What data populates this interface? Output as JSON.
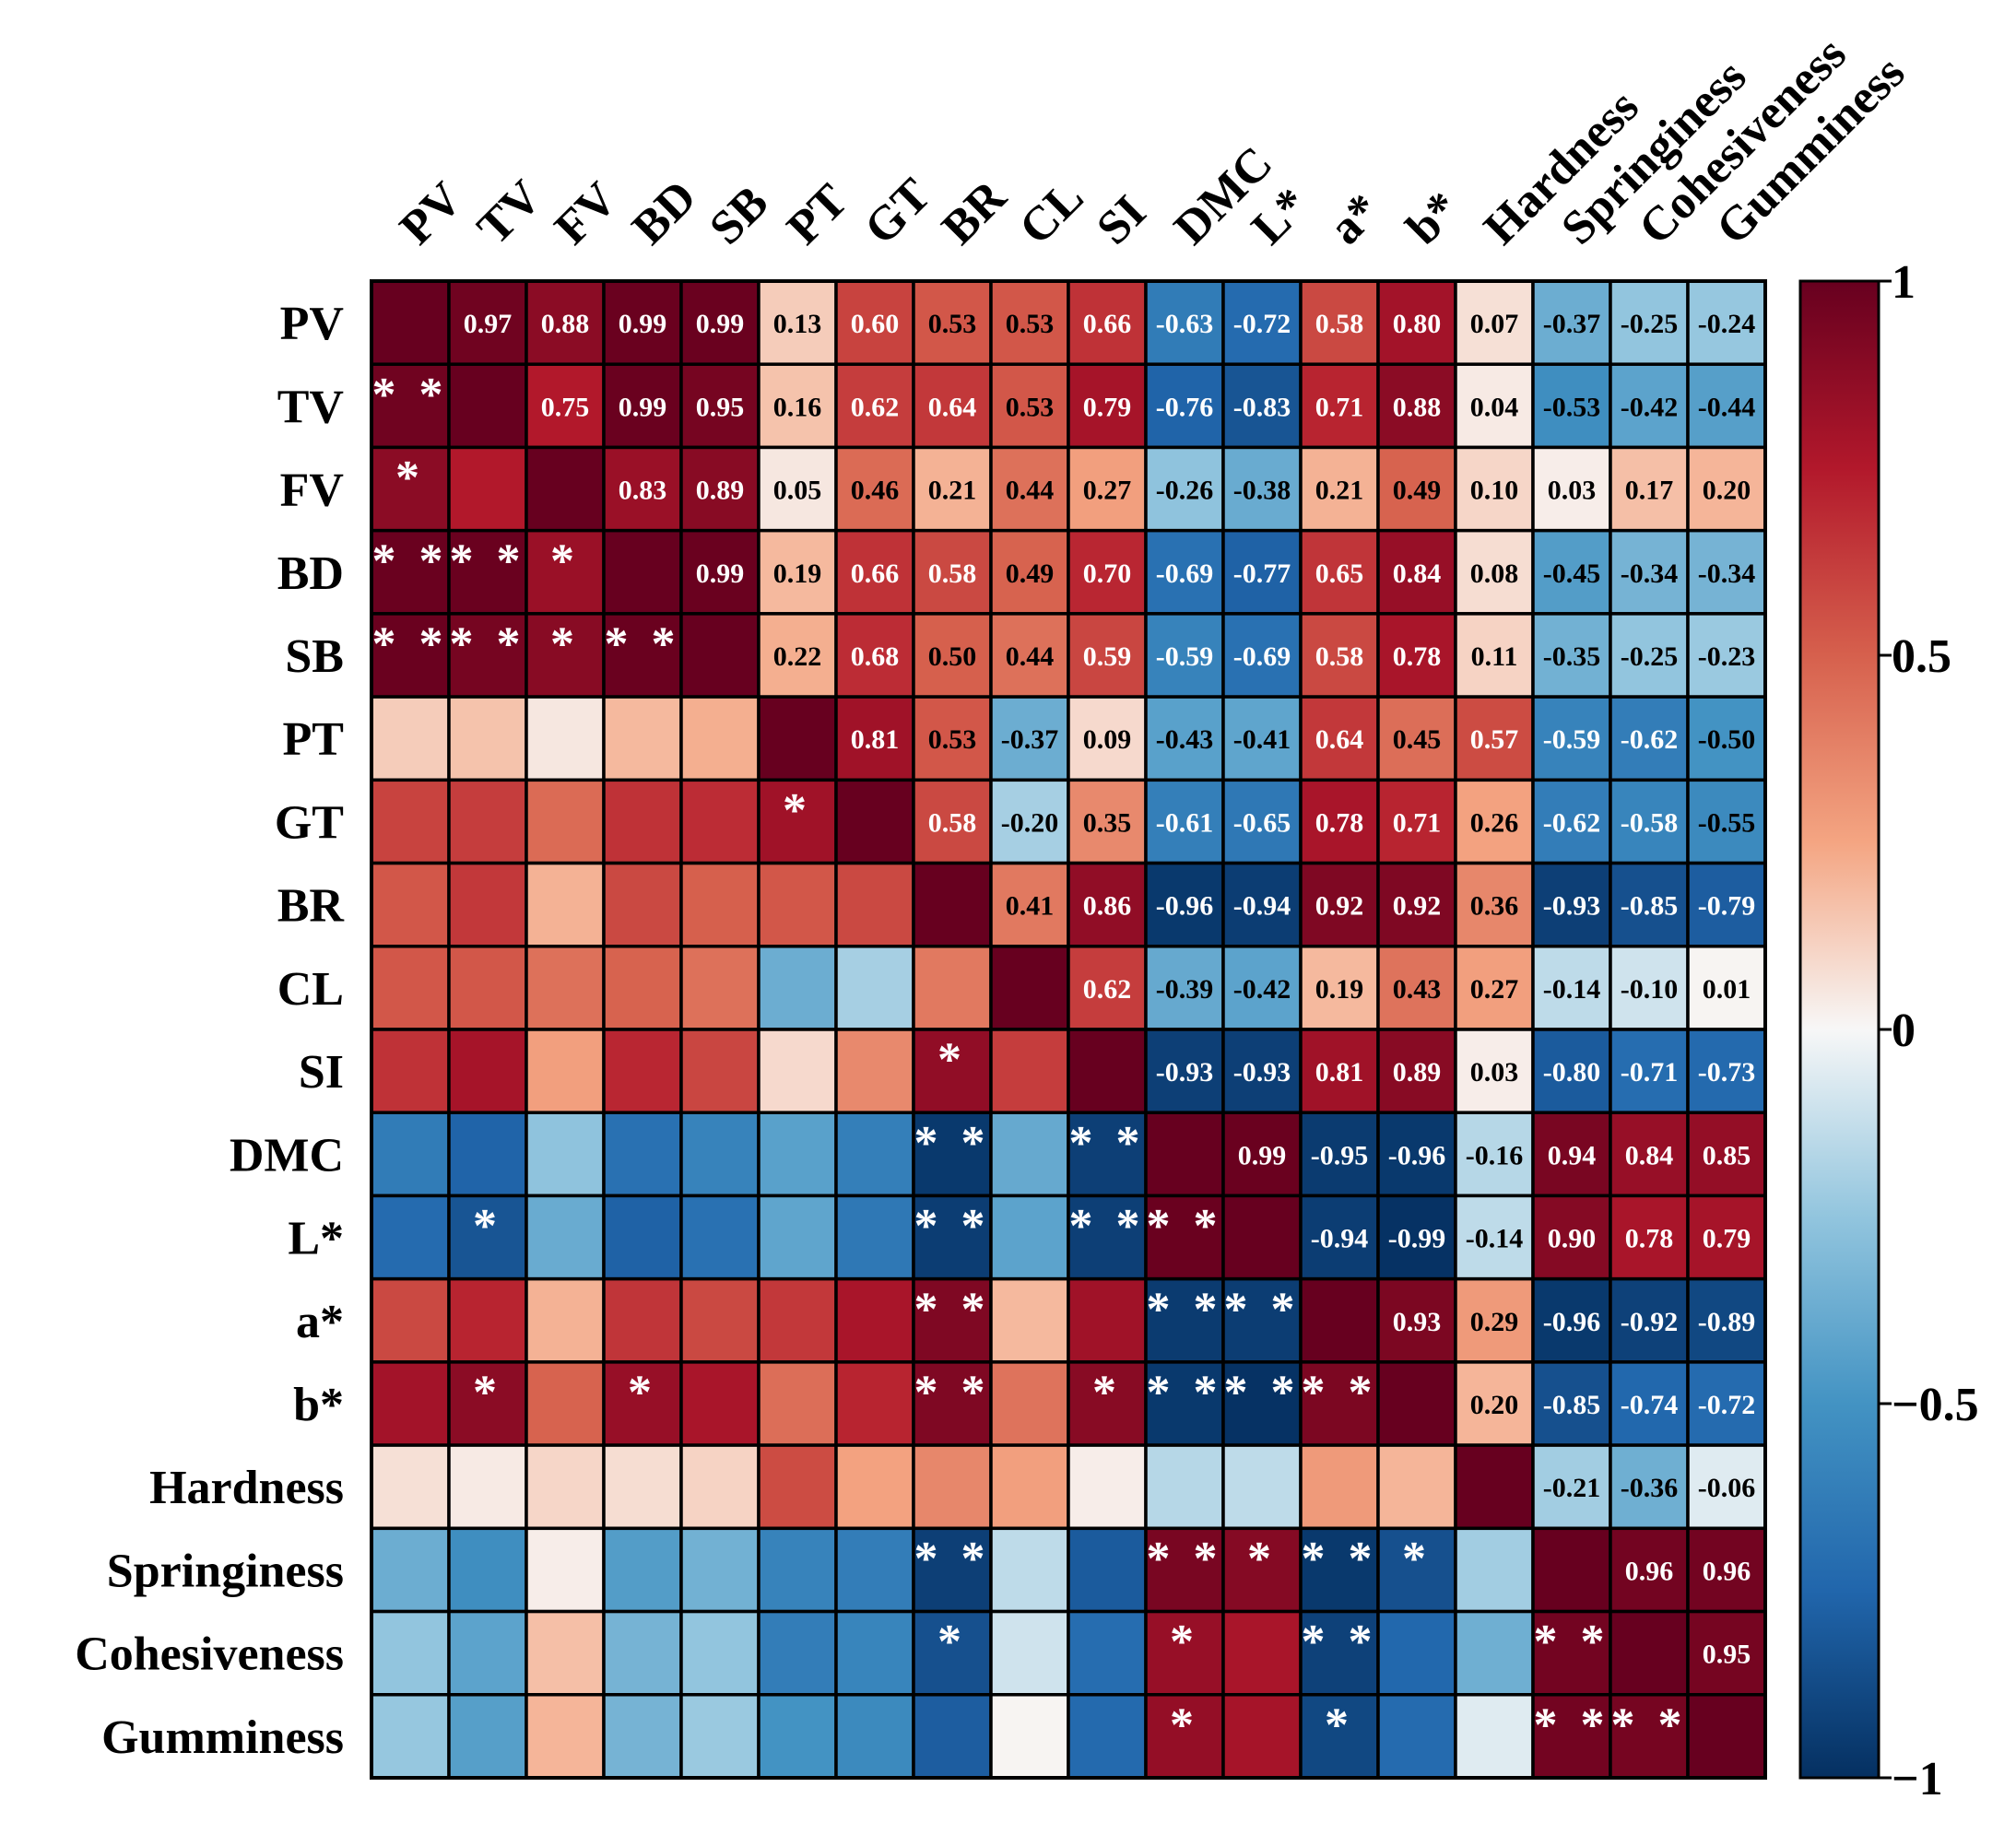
{
  "chart_data": {
    "type": "heatmap",
    "title": "",
    "variables": [
      "PV",
      "TV",
      "FV",
      "BD",
      "SB",
      "PT",
      "GT",
      "BR",
      "CL",
      "SI",
      "DMC",
      "L*",
      "a*",
      "b*",
      "Hardness",
      "Springiness",
      "Cohesiveness",
      "Gumminess"
    ],
    "upper_triangle": "correlation coefficient labels",
    "lower_triangle": "significance markers (* / **)",
    "matrix": [
      [
        1,
        0.97,
        0.88,
        0.99,
        0.99,
        0.13,
        0.6,
        0.53,
        0.53,
        0.66,
        -0.63,
        -0.72,
        0.58,
        0.8,
        0.07,
        -0.37,
        -0.25,
        -0.24
      ],
      [
        0.97,
        1,
        0.75,
        0.99,
        0.95,
        0.16,
        0.62,
        0.64,
        0.53,
        0.79,
        -0.76,
        -0.83,
        0.71,
        0.88,
        0.04,
        -0.53,
        -0.42,
        -0.44
      ],
      [
        0.88,
        0.75,
        1,
        0.83,
        0.89,
        0.05,
        0.46,
        0.21,
        0.44,
        0.27,
        -0.26,
        -0.38,
        0.21,
        0.49,
        0.1,
        0.03,
        0.17,
        0.2
      ],
      [
        0.99,
        0.99,
        0.83,
        1,
        0.99,
        0.19,
        0.66,
        0.58,
        0.49,
        0.7,
        -0.69,
        -0.77,
        0.65,
        0.84,
        0.08,
        -0.45,
        -0.34,
        -0.34
      ],
      [
        0.99,
        0.95,
        0.89,
        0.99,
        1,
        0.22,
        0.68,
        0.5,
        0.44,
        0.59,
        -0.59,
        -0.69,
        0.58,
        0.78,
        0.11,
        -0.35,
        -0.25,
        -0.23
      ],
      [
        0.13,
        0.16,
        0.05,
        0.19,
        0.22,
        1,
        0.81,
        0.53,
        -0.37,
        0.09,
        -0.43,
        -0.41,
        0.64,
        0.45,
        0.57,
        -0.59,
        -0.62,
        -0.5
      ],
      [
        0.6,
        0.62,
        0.46,
        0.66,
        0.68,
        0.81,
        1,
        0.58,
        -0.2,
        0.35,
        -0.61,
        -0.65,
        0.78,
        0.71,
        0.26,
        -0.62,
        -0.58,
        -0.55
      ],
      [
        0.53,
        0.64,
        0.21,
        0.58,
        0.5,
        0.53,
        0.58,
        1,
        0.41,
        0.86,
        -0.96,
        -0.94,
        0.92,
        0.92,
        0.36,
        -0.93,
        -0.85,
        -0.79
      ],
      [
        0.53,
        0.53,
        0.44,
        0.49,
        0.44,
        -0.37,
        -0.2,
        0.41,
        1,
        0.62,
        -0.39,
        -0.42,
        0.19,
        0.43,
        0.27,
        -0.14,
        -0.1,
        0.01
      ],
      [
        0.66,
        0.79,
        0.27,
        0.7,
        0.59,
        0.09,
        0.35,
        0.86,
        0.62,
        1,
        -0.93,
        -0.93,
        0.81,
        0.89,
        0.03,
        -0.8,
        -0.71,
        -0.73
      ],
      [
        -0.63,
        -0.76,
        -0.26,
        -0.69,
        -0.59,
        -0.43,
        -0.61,
        -0.96,
        -0.39,
        -0.93,
        1,
        0.99,
        -0.95,
        -0.96,
        -0.16,
        0.94,
        0.84,
        0.85
      ],
      [
        -0.72,
        -0.83,
        -0.38,
        -0.77,
        -0.69,
        -0.41,
        -0.65,
        -0.94,
        -0.42,
        -0.93,
        0.99,
        1,
        -0.94,
        -0.99,
        -0.14,
        0.9,
        0.78,
        0.79
      ],
      [
        0.58,
        0.71,
        0.21,
        0.65,
        0.58,
        0.64,
        0.78,
        0.92,
        0.19,
        0.81,
        -0.95,
        -0.94,
        1,
        0.93,
        0.29,
        -0.96,
        -0.92,
        -0.89
      ],
      [
        0.8,
        0.88,
        0.49,
        0.84,
        0.78,
        0.45,
        0.71,
        0.92,
        0.43,
        0.89,
        -0.96,
        -0.99,
        0.93,
        1,
        0.2,
        -0.85,
        -0.74,
        -0.72
      ],
      [
        0.07,
        0.04,
        0.1,
        0.08,
        0.11,
        0.57,
        0.26,
        0.36,
        0.27,
        0.03,
        -0.16,
        -0.14,
        0.29,
        0.2,
        1,
        -0.21,
        -0.36,
        -0.06
      ],
      [
        -0.37,
        -0.53,
        0.03,
        -0.45,
        -0.35,
        -0.59,
        -0.62,
        -0.93,
        -0.14,
        -0.8,
        0.94,
        0.9,
        -0.96,
        -0.85,
        -0.21,
        1,
        0.96,
        0.96
      ],
      [
        -0.25,
        -0.42,
        0.17,
        -0.34,
        -0.25,
        -0.62,
        -0.58,
        -0.85,
        -0.1,
        -0.71,
        0.84,
        0.78,
        -0.92,
        -0.74,
        -0.36,
        0.96,
        1,
        0.95
      ],
      [
        -0.24,
        -0.44,
        0.2,
        -0.34,
        -0.23,
        -0.5,
        -0.55,
        -0.79,
        0.01,
        -0.73,
        0.85,
        0.79,
        -0.89,
        -0.72,
        -0.06,
        0.96,
        0.95,
        1
      ]
    ],
    "labels": [
      [
        "",
        "0.97",
        "0.88",
        "0.99",
        "0.99",
        "0.13",
        "0.60",
        "0.53",
        "0.53",
        "0.66",
        "-0.63",
        "-0.72",
        "0.58",
        "0.80",
        "0.07",
        "-0.37",
        "-0.25",
        "-0.24"
      ],
      [
        "**",
        "",
        "0.75",
        "0.99",
        "0.95",
        "0.16",
        "0.62",
        "0.64",
        "0.53",
        "0.79",
        "-0.76",
        "-0.83",
        "0.71",
        "0.88",
        "0.04",
        "-0.53",
        "-0.42",
        "-0.44"
      ],
      [
        "*",
        "",
        "",
        "0.83",
        "0.89",
        "0.05",
        "0.46",
        "0.21",
        "0.44",
        "0.27",
        "-0.26",
        "-0.38",
        "0.21",
        "0.49",
        "0.10",
        "0.03",
        "0.17",
        "0.20"
      ],
      [
        "**",
        "**",
        "*",
        "",
        "0.99",
        "0.19",
        "0.66",
        "0.58",
        "0.49",
        "0.70",
        "-0.69",
        "-0.77",
        "0.65",
        "0.84",
        "0.08",
        "-0.45",
        "-0.34",
        "-0.34"
      ],
      [
        "**",
        "**",
        "*",
        "**",
        "",
        "0.22",
        "0.68",
        "0.50",
        "0.44",
        "0.59",
        "-0.59",
        "-0.69",
        "0.58",
        "0.78",
        "0.11",
        "-0.35",
        "-0.25",
        "-0.23"
      ],
      [
        "",
        "",
        "",
        "",
        "",
        "",
        "0.81",
        "0.53",
        "-0.37",
        "0.09",
        "-0.43",
        "-0.41",
        "0.64",
        "0.45",
        "0.57",
        "-0.59",
        "-0.62",
        "-0.50"
      ],
      [
        "",
        "",
        "",
        "",
        "",
        "*",
        "",
        "0.58",
        "-0.20",
        "0.35",
        "-0.61",
        "-0.65",
        "0.78",
        "0.71",
        "0.26",
        "-0.62",
        "-0.58",
        "-0.55"
      ],
      [
        "",
        "",
        "",
        "",
        "",
        "",
        "",
        "",
        "0.41",
        "0.86",
        "-0.96",
        "-0.94",
        "0.92",
        "0.92",
        "0.36",
        "-0.93",
        "-0.85",
        "-0.79"
      ],
      [
        "",
        "",
        "",
        "",
        "",
        "",
        "",
        "",
        "",
        "0.62",
        "-0.39",
        "-0.42",
        "0.19",
        "0.43",
        "0.27",
        "-0.14",
        "-0.10",
        "0.01"
      ],
      [
        "",
        "",
        "",
        "",
        "",
        "",
        "",
        "*",
        "",
        "",
        "-0.93",
        "-0.93",
        "0.81",
        "0.89",
        "0.03",
        "-0.80",
        "-0.71",
        "-0.73"
      ],
      [
        "",
        "",
        "",
        "",
        "",
        "",
        "",
        "**",
        "",
        "**",
        "",
        "0.99",
        "-0.95",
        "-0.96",
        "-0.16",
        "0.94",
        "0.84",
        "0.85"
      ],
      [
        "",
        "*",
        "",
        "",
        "",
        "",
        "",
        "**",
        "",
        "**",
        "**",
        "",
        "-0.94",
        "-0.99",
        "-0.14",
        "0.90",
        "0.78",
        "0.79"
      ],
      [
        "",
        "",
        "",
        "",
        "",
        "",
        "",
        "**",
        "",
        "",
        "**",
        "**",
        "",
        "0.93",
        "0.29",
        "-0.96",
        "-0.92",
        "-0.89"
      ],
      [
        "",
        "*",
        "",
        "*",
        "",
        "",
        "",
        "**",
        "",
        "*",
        "**",
        "**",
        "**",
        "",
        "0.20",
        "-0.85",
        "-0.74",
        "-0.72"
      ],
      [
        "",
        "",
        "",
        "",
        "",
        "",
        "",
        "",
        "",
        "",
        "",
        "",
        "",
        "",
        "",
        "-0.21",
        "-0.36",
        "-0.06"
      ],
      [
        "",
        "",
        "",
        "",
        "",
        "",
        "",
        "**",
        "",
        "",
        "**",
        "*",
        "**",
        "*",
        "",
        "",
        "0.96",
        "0.96"
      ],
      [
        "",
        "",
        "",
        "",
        "",
        "",
        "",
        "*",
        "",
        "",
        "*",
        "",
        "**",
        "",
        "",
        "**",
        "",
        "0.95"
      ],
      [
        "",
        "",
        "",
        "",
        "",
        "",
        "",
        "",
        "",
        "",
        "*",
        "",
        "*",
        "",
        "",
        "**",
        "**",
        ""
      ]
    ],
    "colorbar": {
      "range": [
        -1,
        1
      ],
      "ticks": [
        "1",
        "0.5",
        "0",
        "−0.5",
        "−1"
      ],
      "tick_values": [
        1,
        0.5,
        0,
        -0.5,
        -1
      ],
      "colormap": "RdBu_r"
    }
  }
}
